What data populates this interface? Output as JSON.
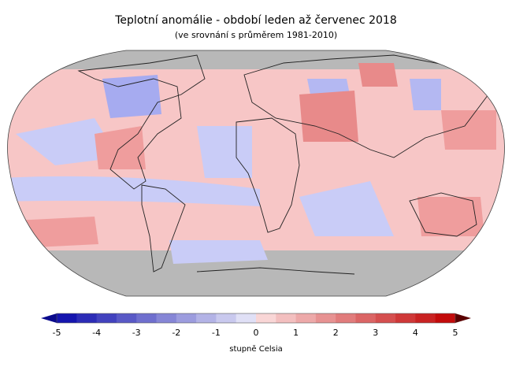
{
  "title": "Teplotní anomálie - období leden až červenec 2018",
  "subtitle": "(ve srovnání s průměrem 1981-2010)",
  "legend": {
    "unit": "stupně Celsia",
    "ticks": [
      "-5",
      "-4",
      "-3",
      "-2",
      "-1",
      "0",
      "1",
      "2",
      "3",
      "4",
      "5"
    ],
    "range": [
      -5,
      5
    ],
    "step": 0.5
  },
  "colors": {
    "no_data": "#b8b8b8",
    "cold_extreme": "#0a0a8c",
    "warm_extreme": "#5a0000"
  }
}
